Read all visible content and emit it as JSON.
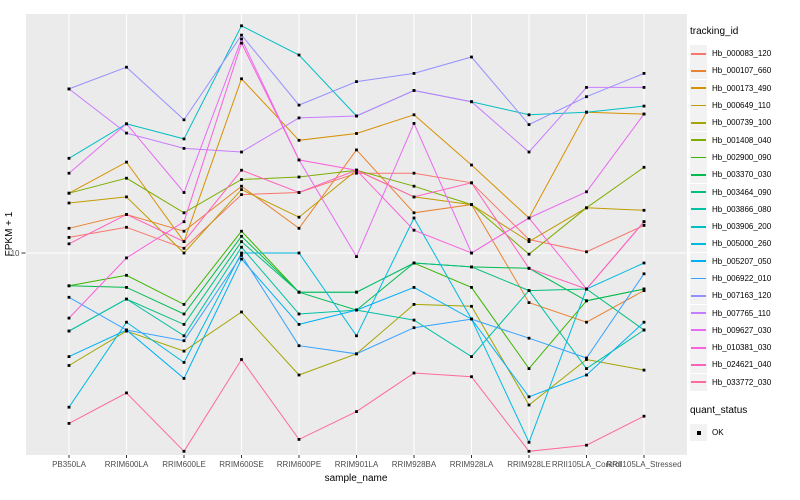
{
  "chart_data": {
    "type": "line",
    "title": "",
    "xlabel": "sample_name",
    "ylabel": "FPKM + 1",
    "y_scale": "log10",
    "y_axis": {
      "tick_label": "10",
      "tick_value": 10,
      "range_approx": [
        1.8,
        75
      ]
    },
    "grid": "on",
    "categories": [
      "PB350LA",
      "RRIM600LA",
      "RRIM600LE",
      "RRIM600SE",
      "RRIM600PE",
      "RRIM901LA",
      "RRIM928BA",
      "RRIM928LA",
      "RRIM928LE",
      "RRII105LA_Control",
      "RRII105LA_Stressed"
    ],
    "series": [
      {
        "name": "Hb_000083_120",
        "color": "#F8766D",
        "values": [
          11.4,
          12.4,
          10.4,
          16.3,
          16.6,
          19.5,
          19.5,
          18.0,
          11.2,
          10.1,
          12.6
        ]
      },
      {
        "name": "Hb_000107_660",
        "color": "#EA8331",
        "values": [
          12.3,
          13.8,
          12.0,
          17.5,
          12.3,
          23.7,
          14.0,
          15.0,
          6.6,
          5.6,
          7.3
        ]
      },
      {
        "name": "Hb_000173_490",
        "color": "#D89000",
        "values": [
          16.5,
          21.4,
          11.0,
          43.0,
          25.7,
          27.2,
          31.8,
          20.9,
          13.4,
          32.5,
          32.0
        ]
      },
      {
        "name": "Hb_000649_110",
        "color": "#C09B00",
        "values": [
          15.2,
          16.0,
          10.0,
          17.0,
          13.5,
          20.0,
          16.0,
          15.0,
          11.0,
          14.6,
          14.3
        ]
      },
      {
        "name": "Hb_000739_100",
        "color": "#A3A500",
        "values": [
          3.9,
          5.2,
          4.4,
          6.1,
          3.6,
          4.3,
          6.5,
          6.4,
          2.8,
          4.1,
          3.75
        ]
      },
      {
        "name": "Hb_001408_040",
        "color": "#7CAE00",
        "values": [
          16.5,
          18.7,
          14.0,
          18.5,
          18.9,
          20.0,
          17.5,
          15.0,
          9.9,
          14.6,
          20.5
        ]
      },
      {
        "name": "Hb_002900_090",
        "color": "#39B600",
        "values": [
          7.6,
          8.3,
          6.5,
          12.0,
          7.2,
          7.2,
          9.2,
          7.5,
          3.8,
          6.7,
          7.4
        ]
      },
      {
        "name": "Hb_003370_030",
        "color": "#00BB4E",
        "values": [
          7.6,
          7.5,
          6.0,
          11.5,
          7.2,
          6.2,
          9.2,
          8.9,
          8.8,
          6.7,
          7.4
        ]
      },
      {
        "name": "Hb_003464_090",
        "color": "#00BF7D",
        "values": [
          5.2,
          6.8,
          5.5,
          11.0,
          7.2,
          7.2,
          9.2,
          8.9,
          7.3,
          7.4,
          5.25
        ]
      },
      {
        "name": "Hb_003866_080",
        "color": "#00C1A3",
        "values": [
          5.2,
          6.8,
          5.0,
          10.5,
          6.0,
          6.2,
          5.7,
          4.2,
          7.3,
          3.8,
          5.25
        ]
      },
      {
        "name": "Hb_003906_200",
        "color": "#00BFC4",
        "values": [
          22.1,
          29.5,
          26.0,
          67.0,
          52.5,
          31.5,
          39.0,
          35.5,
          31.8,
          32.5,
          34.2
        ]
      },
      {
        "name": "Hb_005000_260",
        "color": "#00BAE0",
        "values": [
          2.75,
          5.6,
          4.0,
          10.0,
          10.0,
          5.0,
          13.4,
          5.75,
          2.05,
          7.4,
          9.2
        ]
      },
      {
        "name": "Hb_005207_050",
        "color": "#00B0F6",
        "values": [
          4.2,
          5.25,
          3.5,
          9.5,
          5.5,
          6.2,
          7.5,
          5.75,
          3.0,
          3.6,
          5.6
        ]
      },
      {
        "name": "Hb_006922_010",
        "color": "#35A2FF",
        "values": [
          6.9,
          5.25,
          4.8,
          9.8,
          4.6,
          4.3,
          5.35,
          5.75,
          4.9,
          4.15,
          8.4
        ]
      },
      {
        "name": "Hb_007163_120",
        "color": "#9590FF",
        "values": [
          39.5,
          47.4,
          30.5,
          62.0,
          34.5,
          42.0,
          45.0,
          51.6,
          29.3,
          37.0,
          45.0
        ]
      },
      {
        "name": "Hb_007765_110",
        "color": "#C77CFF",
        "values": [
          39.5,
          27.3,
          24.0,
          23.3,
          31.0,
          31.5,
          39.0,
          35.5,
          23.3,
          40.0,
          40.0
        ]
      },
      {
        "name": "Hb_009627_030",
        "color": "#E76BF3",
        "values": [
          19.5,
          29.5,
          16.6,
          60.0,
          21.8,
          9.7,
          29.6,
          10.0,
          13.4,
          16.7,
          32.0
        ]
      },
      {
        "name": "Hb_010381_030",
        "color": "#FA62DB",
        "values": [
          5.8,
          9.6,
          13.0,
          58.0,
          21.8,
          20.0,
          12.1,
          10.0,
          13.4,
          7.4,
          13.0
        ]
      },
      {
        "name": "Hb_024621_040",
        "color": "#FF62BC",
        "values": [
          10.8,
          13.8,
          11.0,
          20.0,
          16.6,
          20.0,
          16.0,
          18.0,
          8.8,
          7.4,
          13.0
        ]
      },
      {
        "name": "Hb_033772_030",
        "color": "#FF6A98",
        "values": [
          2.4,
          3.1,
          1.9,
          4.1,
          2.1,
          2.65,
          3.66,
          3.55,
          1.9,
          2.0,
          2.55
        ]
      }
    ],
    "point_marker": {
      "shape": "square",
      "color": "#000000"
    },
    "legend": {
      "title": "tracking_id",
      "position": "right",
      "quant_status": {
        "title": "quant_status",
        "items": [
          {
            "label": "OK",
            "marker": "black-square"
          }
        ]
      }
    },
    "style": {
      "panel_bg": "#EBEBEB",
      "grid_color": "#FFFFFF",
      "legend_key_bg": "#F2F2F2",
      "axis_text_color": "#4D4D4D",
      "axis_title_color": "#000000"
    }
  }
}
